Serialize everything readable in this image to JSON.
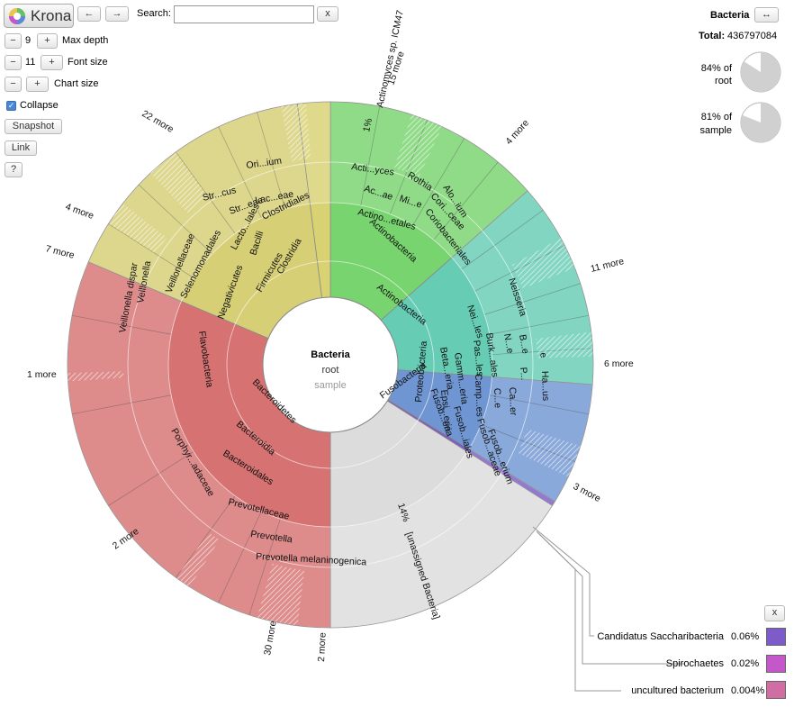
{
  "toolbar": {
    "logo_text": "Krona",
    "back_icon": "←",
    "forward_icon": "→",
    "search_label": "Search:",
    "search_value": "",
    "clear_label": "x",
    "minus": "−",
    "plus": "+",
    "max_depth_value": "9",
    "max_depth_label": "Max depth",
    "font_size_value": "11",
    "font_size_label": "Font size",
    "chart_size_label": "Chart size",
    "collapse_label": "Collapse",
    "snapshot_label": "Snapshot",
    "link_label": "Link",
    "help_label": "?"
  },
  "details": {
    "name": "Bacteria",
    "swap_icon": "↔",
    "total_label": "Total:",
    "total_value": "436797084",
    "root_line1": "84% of",
    "root_line2": "root",
    "root_fraction": 0.84,
    "sample_line1": "81% of",
    "sample_line2": "sample",
    "sample_fraction": 0.81
  },
  "center": {
    "name": "Bacteria",
    "line2": "root",
    "line3": "sample"
  },
  "key": {
    "close_label": "x",
    "items": [
      {
        "name": "Candidatus Saccharibacteria",
        "percent": "0.06%",
        "color": "#7d5bc9"
      },
      {
        "name": "Spirochaetes",
        "percent": "0.02%",
        "color": "#c457c9"
      },
      {
        "name": "uncultured bacterium",
        "percent": "0.004%",
        "color": "#d06ea3"
      }
    ]
  },
  "wedges": [
    {
      "name": "Actinobacteria",
      "start": 0.0,
      "end": 0.135,
      "color": "#78d46e"
    },
    {
      "name": "Proteobacteria",
      "start": 0.135,
      "end": 0.262,
      "color": "#66ccb4"
    },
    {
      "name": "Fusobacteria",
      "start": 0.262,
      "end": 0.337,
      "color": "#6f96d2"
    },
    {
      "name": "Candidatus Saccharibacteria",
      "start": 0.337,
      "end": 0.34,
      "color": "#7d5bc9"
    },
    {
      "name": "[unassigned Bacteria]",
      "start": 0.34,
      "end": 0.5,
      "color": "#dcdcdc"
    },
    {
      "name": "Bacteroidetes",
      "start": 0.5,
      "end": 0.814,
      "color": "#d67272"
    },
    {
      "name": "Firmicutes",
      "start": 0.814,
      "end": 0.98,
      "color": "#d6cf76"
    },
    {
      "name": "Actinomyces sp. ICM47",
      "start": 0.98,
      "end": 1.0,
      "color": "#d8d272"
    }
  ],
  "labels": {
    "actinobacteria": "Actinobacteria",
    "actinobacteria2": "Actinobacteria",
    "actinoetales": "Actino...etales",
    "acae": "Ac...ae",
    "mie": "Mi...e",
    "actiyces": "Acti...yces",
    "rothia": "Rothia",
    "coriobacteriales": "Coriobacteriales",
    "coriceae": "Cori...ceae",
    "aloium": "Alo...ium",
    "proteobacteria": "Proteobacteria",
    "betaeria": "Beta...eria",
    "gammeria": "Gamm...eria",
    "epsieria": "Epsi...eria",
    "neiles": "Nei...les",
    "burkales": "Burk...ales",
    "pasles": "Pas...les",
    "campes": "Camp...es",
    "neisseria": "Neisseria",
    "ne": "N...e",
    "be": "B...e",
    "e1": "e",
    "p": "P...",
    "ce": "C...e",
    "caer": "Ca...er",
    "ha": "Ha...us",
    "fusobacteria": "Fusobacteria",
    "fusobeia": "Fusob...eria",
    "fusobiales": "Fusob...iales",
    "fusobaceae": "Fusob...aceae",
    "fusoberium": "Fusob...erium",
    "unassigned": "[unassigned Bacteria]",
    "bacteroidetes": "Bacteroidetes",
    "bacteroidia": "Bacteroidia",
    "bacteroidales": "Bacteroidales",
    "flavobacteria": "Flavobacteria",
    "porphyadaceae": "Porphyr...adaceae",
    "prevotellaceae": "Prevotellaceae",
    "prevotella": "Prevotella",
    "prevmelan": "Prevotella melaninogenica",
    "firmicutes": "Firmicutes",
    "negativicutes": "Negativicutes",
    "bacilli": "Bacilli",
    "clostridia": "Clostridia",
    "clostridiales": "Clostridiales",
    "lactoales": "Lacto...lales",
    "streae": "Str...eae",
    "strcus": "Str...cus",
    "laceae": "Lac...eae",
    "orium": "Ori...ium",
    "selenomonadales": "Selenomonadales",
    "veillonellaceae": "Veillonellaceae",
    "veillonella": "Veillonella",
    "veillonelladispar": "Veillonella dispar",
    "actinomycessp": "Actinomyces sp. ICM47",
    "pct1": "1%",
    "pct14": "14%",
    "more15": "15 more",
    "more4": "4 more",
    "more11": "11 more",
    "more6": "6 more",
    "more3": "3 more",
    "more2b": "2 more",
    "more30": "30 more",
    "more2a": "2 more",
    "more1": "1 more",
    "more7": "7 more",
    "more4b": "4 more",
    "more22": "22 more"
  }
}
